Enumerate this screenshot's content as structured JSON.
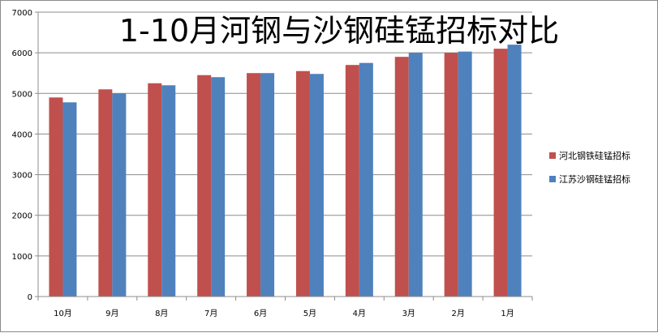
{
  "chart_data": {
    "type": "bar",
    "title": "1-10月河钢与沙钢硅锰招标对比",
    "categories": [
      "10月",
      "9月",
      "8月",
      "7月",
      "6月",
      "5月",
      "4月",
      "3月",
      "2月",
      "1月"
    ],
    "series": [
      {
        "name": "河北钢铁硅锰招标",
        "color": "#c0504d",
        "values": [
          4900,
          5100,
          5250,
          5450,
          5500,
          5550,
          5700,
          5900,
          6000,
          6100
        ]
      },
      {
        "name": "江苏沙钢硅锰招标",
        "color": "#4f81bd",
        "values": [
          4780,
          5000,
          5200,
          5400,
          5500,
          5480,
          5750,
          6000,
          6030,
          6200
        ]
      }
    ],
    "ylim": [
      0,
      7000
    ],
    "yticks": [
      0,
      1000,
      2000,
      3000,
      4000,
      5000,
      6000,
      7000
    ],
    "grid": true,
    "legend_position": "right"
  }
}
